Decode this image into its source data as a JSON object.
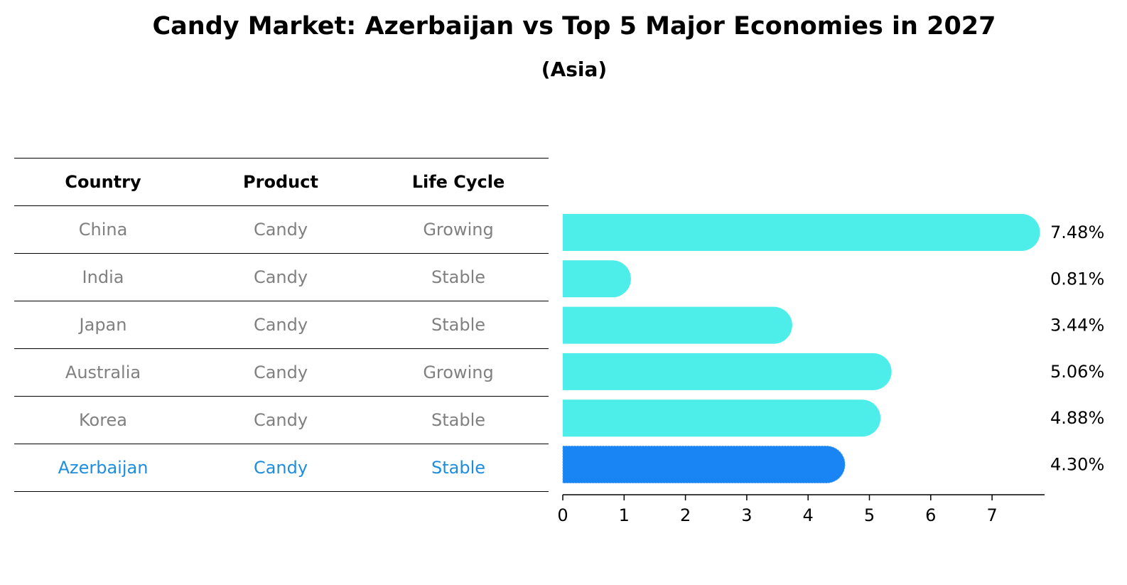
{
  "title": "Candy Market: Azerbaijan vs Top 5 Major Economies in 2027",
  "subtitle": "(Asia)",
  "colors": {
    "bar": "#4deeea",
    "highlight_bar": "#1985f5",
    "highlight_text": "#1f8ddd",
    "muted_text": "#808080"
  },
  "table": {
    "headers": [
      "Country",
      "Product",
      "Life Cycle"
    ],
    "rows": [
      {
        "country": "China",
        "product": "Candy",
        "life_cycle": "Growing"
      },
      {
        "country": "India",
        "product": "Candy",
        "life_cycle": "Stable"
      },
      {
        "country": "Japan",
        "product": "Candy",
        "life_cycle": "Stable"
      },
      {
        "country": "Australia",
        "product": "Candy",
        "life_cycle": "Growing"
      },
      {
        "country": "Korea",
        "product": "Candy",
        "life_cycle": "Stable"
      },
      {
        "country": "Azerbaijan",
        "product": "Candy",
        "life_cycle": "Stable"
      }
    ]
  },
  "chart_data": {
    "type": "bar",
    "orientation": "horizontal",
    "categories": [
      "China",
      "India",
      "Japan",
      "Australia",
      "Korea",
      "Azerbaijan"
    ],
    "values": [
      7.48,
      0.81,
      3.44,
      5.06,
      4.88,
      4.3
    ],
    "value_labels": [
      "7.48%",
      "0.81%",
      "3.44%",
      "5.06%",
      "4.88%",
      "4.30%"
    ],
    "highlight": "Azerbaijan",
    "xticks": [
      0,
      1,
      2,
      3,
      4,
      5,
      6,
      7
    ],
    "xlim": [
      0,
      7.85
    ]
  }
}
